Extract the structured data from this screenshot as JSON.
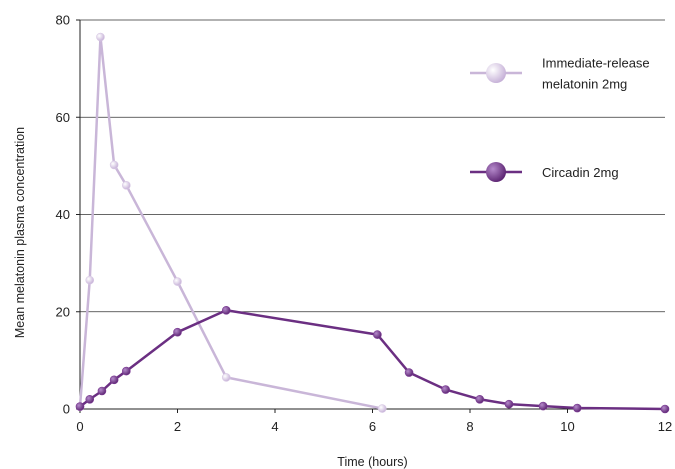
{
  "chart_data": {
    "type": "line",
    "title": "",
    "xlabel": "Time (hours)",
    "ylabel": "Mean melatonin plasma concentration",
    "xlim": [
      0,
      12
    ],
    "ylim": [
      0,
      80
    ],
    "xticks": [
      0,
      2,
      4,
      6,
      8,
      10,
      12
    ],
    "yticks": [
      0,
      20,
      40,
      60,
      80
    ],
    "grid": "horizontal",
    "legend_position": "top-right",
    "series": [
      {
        "name": "Immediate-release melatonin 2mg",
        "color": "#c9b6d8",
        "marker_color": "#d8c9e4",
        "points": [
          [
            0,
            0.5
          ],
          [
            0.2,
            26.5
          ],
          [
            0.42,
            76.5
          ],
          [
            0.7,
            50.2
          ],
          [
            0.95,
            46.0
          ],
          [
            2.0,
            26.2
          ],
          [
            3.0,
            6.5
          ],
          [
            6.2,
            0.1
          ]
        ]
      },
      {
        "name": "Circadin 2mg",
        "color": "#6b2f82",
        "marker_color": "#7b3a93",
        "points": [
          [
            0,
            0.5
          ],
          [
            0.2,
            2.0
          ],
          [
            0.45,
            3.7
          ],
          [
            0.7,
            6.0
          ],
          [
            0.95,
            7.8
          ],
          [
            2.0,
            15.8
          ],
          [
            3.0,
            20.3
          ],
          [
            6.1,
            15.3
          ],
          [
            6.75,
            7.5
          ],
          [
            7.5,
            4.0
          ],
          [
            8.2,
            2.0
          ],
          [
            8.8,
            1.0
          ],
          [
            9.5,
            0.6
          ],
          [
            10.2,
            0.2
          ],
          [
            12.0,
            0.0
          ]
        ]
      }
    ],
    "legend": [
      {
        "label_lines": [
          "Immediate-release",
          "melatonin 2mg"
        ]
      },
      {
        "label_lines": [
          "Circadin 2mg"
        ]
      }
    ]
  }
}
